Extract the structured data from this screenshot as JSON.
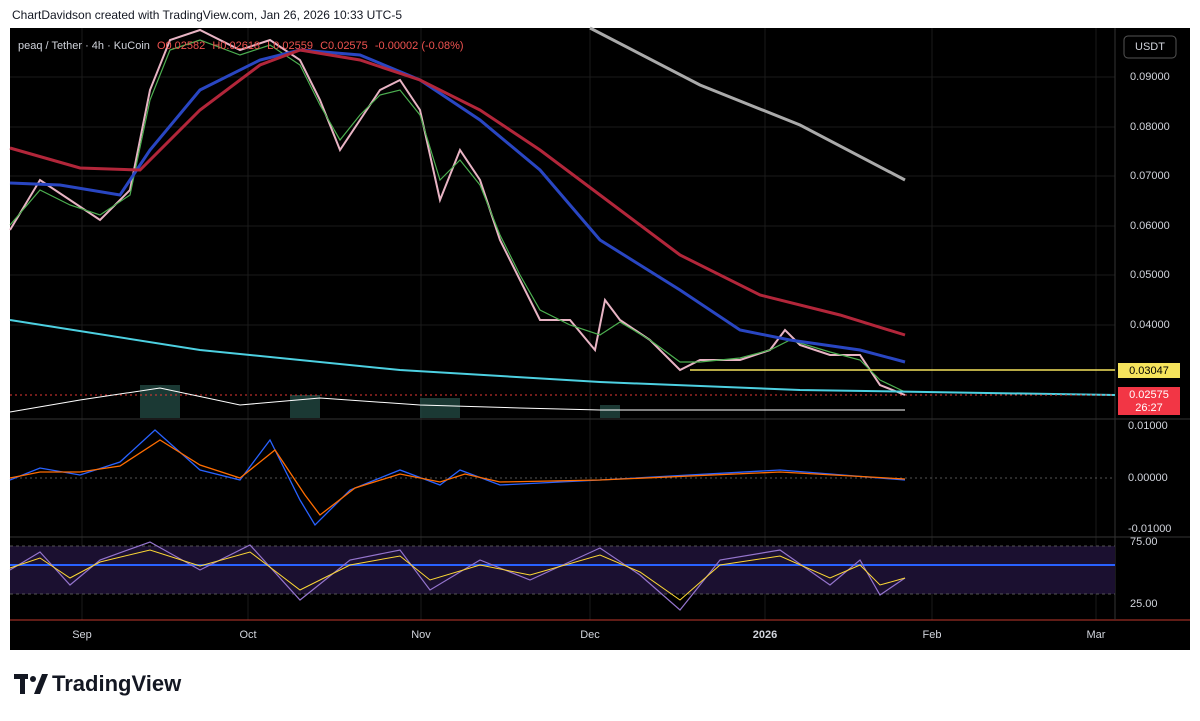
{
  "header": {
    "credit": "ChartDavidson created with TradingView.com, Jan 26, 2026 10:33 UTC-5"
  },
  "legend": {
    "symbol": "peaq / Tether · 4h · KuCoin",
    "open": "O0.02582",
    "high": "H0.02618",
    "low": "L0.02559",
    "close": "C0.02575",
    "change": "-0.00002 (-0.08%)"
  },
  "price_axis": {
    "currency": "USDT",
    "labels": [
      "0.09000",
      "0.08000",
      "0.07000",
      "0.06000",
      "0.05000",
      "0.04000"
    ],
    "level_badge": "0.03047",
    "price_badge": "0.02575",
    "countdown": "26:27"
  },
  "macd_axis": {
    "labels": [
      "0.01000",
      "0.00000",
      "-0.01000"
    ]
  },
  "rsi_axis": {
    "labels": [
      "75.00",
      "25.00"
    ]
  },
  "time_axis": {
    "labels": [
      "Sep",
      "Oct",
      "Nov",
      "Dec",
      "2026",
      "Feb",
      "Mar"
    ]
  },
  "footer": {
    "brand": "TradingView"
  }
}
